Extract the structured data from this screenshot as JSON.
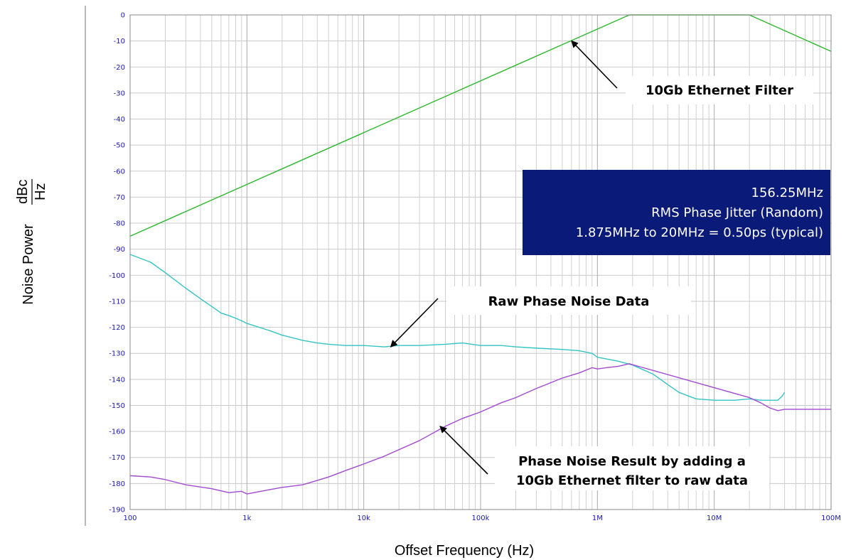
{
  "chart_data": {
    "type": "line",
    "xscale": "log",
    "xlim": [
      100,
      100000000
    ],
    "ylim": [
      -190,
      0
    ],
    "xlabel": "Offset Frequency (Hz)",
    "ylabel": "Noise Power",
    "ylabel_unit_num": "dBc",
    "ylabel_unit_den": "Hz",
    "x_ticks": [
      {
        "value": 100,
        "label": "100"
      },
      {
        "value": 1000,
        "label": "1k"
      },
      {
        "value": 10000,
        "label": "10k"
      },
      {
        "value": 100000,
        "label": "100k"
      },
      {
        "value": 1000000,
        "label": "1M"
      },
      {
        "value": 10000000,
        "label": "10M"
      },
      {
        "value": 100000000,
        "label": "100M"
      }
    ],
    "y_ticks": [
      0,
      -10,
      -20,
      -30,
      -40,
      -50,
      -60,
      -70,
      -80,
      -90,
      -100,
      -110,
      -120,
      -130,
      -140,
      -150,
      -160,
      -170,
      -180,
      -190
    ],
    "grid": true,
    "series": [
      {
        "color": "#2db82d",
        "points": [
          [
            100,
            -85
          ],
          [
            1875000,
            0
          ],
          [
            20000000,
            0
          ],
          [
            100000000,
            -14
          ]
        ]
      },
      {
        "color": "#33c4c4",
        "points": [
          [
            100,
            -92
          ],
          [
            150,
            -95
          ],
          [
            200,
            -99
          ],
          [
            300,
            -105
          ],
          [
            400,
            -109
          ],
          [
            500,
            -112
          ],
          [
            600,
            -114.5
          ],
          [
            700,
            -115.5
          ],
          [
            800,
            -116.5
          ],
          [
            900,
            -117.5
          ],
          [
            1000,
            -118.5
          ],
          [
            1500,
            -121
          ],
          [
            2000,
            -123
          ],
          [
            3000,
            -125
          ],
          [
            4000,
            -126
          ],
          [
            5000,
            -126.5
          ],
          [
            7000,
            -127
          ],
          [
            10000,
            -127
          ],
          [
            15000,
            -127.5
          ],
          [
            20000,
            -127
          ],
          [
            30000,
            -127
          ],
          [
            50000,
            -126.5
          ],
          [
            70000,
            -126
          ],
          [
            100000,
            -127
          ],
          [
            150000,
            -127
          ],
          [
            200000,
            -127.5
          ],
          [
            300000,
            -128
          ],
          [
            500000,
            -128.5
          ],
          [
            700000,
            -129
          ],
          [
            900000,
            -130
          ],
          [
            1000000,
            -131.5
          ],
          [
            1500000,
            -133
          ],
          [
            2000000,
            -134.5
          ],
          [
            3000000,
            -138
          ],
          [
            4000000,
            -142
          ],
          [
            5000000,
            -145
          ],
          [
            7000000,
            -147.5
          ],
          [
            10000000,
            -148
          ],
          [
            15000000,
            -148
          ],
          [
            20000000,
            -147.5
          ],
          [
            25000000,
            -148
          ],
          [
            30000000,
            -148
          ],
          [
            35000000,
            -148
          ],
          [
            38000000,
            -146.5
          ],
          [
            40000000,
            -145
          ]
        ]
      },
      {
        "color": "#a24ad0",
        "points": [
          [
            100,
            -177
          ],
          [
            150,
            -177.5
          ],
          [
            200,
            -178.5
          ],
          [
            300,
            -180.5
          ],
          [
            500,
            -182
          ],
          [
            700,
            -183.5
          ],
          [
            900,
            -183
          ],
          [
            1000,
            -184
          ],
          [
            1500,
            -182.5
          ],
          [
            2000,
            -181.5
          ],
          [
            3000,
            -180.5
          ],
          [
            5000,
            -177.5
          ],
          [
            7000,
            -175
          ],
          [
            10000,
            -172.5
          ],
          [
            15000,
            -169.5
          ],
          [
            20000,
            -167
          ],
          [
            30000,
            -163.5
          ],
          [
            50000,
            -158
          ],
          [
            70000,
            -155
          ],
          [
            100000,
            -152.5
          ],
          [
            150000,
            -149
          ],
          [
            200000,
            -147
          ],
          [
            300000,
            -143.5
          ],
          [
            500000,
            -139.5
          ],
          [
            700000,
            -137.5
          ],
          [
            900000,
            -135.5
          ],
          [
            1000000,
            -136
          ],
          [
            1200000,
            -135.5
          ],
          [
            1500000,
            -135
          ],
          [
            1875000,
            -134
          ],
          [
            20000000,
            -147
          ],
          [
            25000000,
            -149
          ],
          [
            30000000,
            -151
          ],
          [
            35000000,
            -152
          ],
          [
            40000000,
            -151.5
          ],
          [
            60000000,
            -151.5
          ],
          [
            100000000,
            -151.5
          ]
        ]
      }
    ],
    "annotations": [
      {
        "id": "filter",
        "lines": [
          "10Gb Ethernet Filter"
        ],
        "arrow_to": [
          600000,
          -10
        ]
      },
      {
        "id": "raw",
        "lines": [
          "Raw Phase Noise Data"
        ],
        "arrow_to": [
          17000,
          -127.5
        ]
      },
      {
        "id": "result",
        "lines": [
          "Phase Noise Result by adding a",
          "10Gb Ethernet filter to raw data"
        ],
        "arrow_to": [
          45000,
          -158
        ]
      }
    ],
    "info_box": {
      "lines": [
        "156.25MHz",
        "RMS Phase Jitter (Random)",
        "1.875MHz to 20MHz = 0.50ps (typical)"
      ],
      "background": "#0a1a78"
    }
  }
}
